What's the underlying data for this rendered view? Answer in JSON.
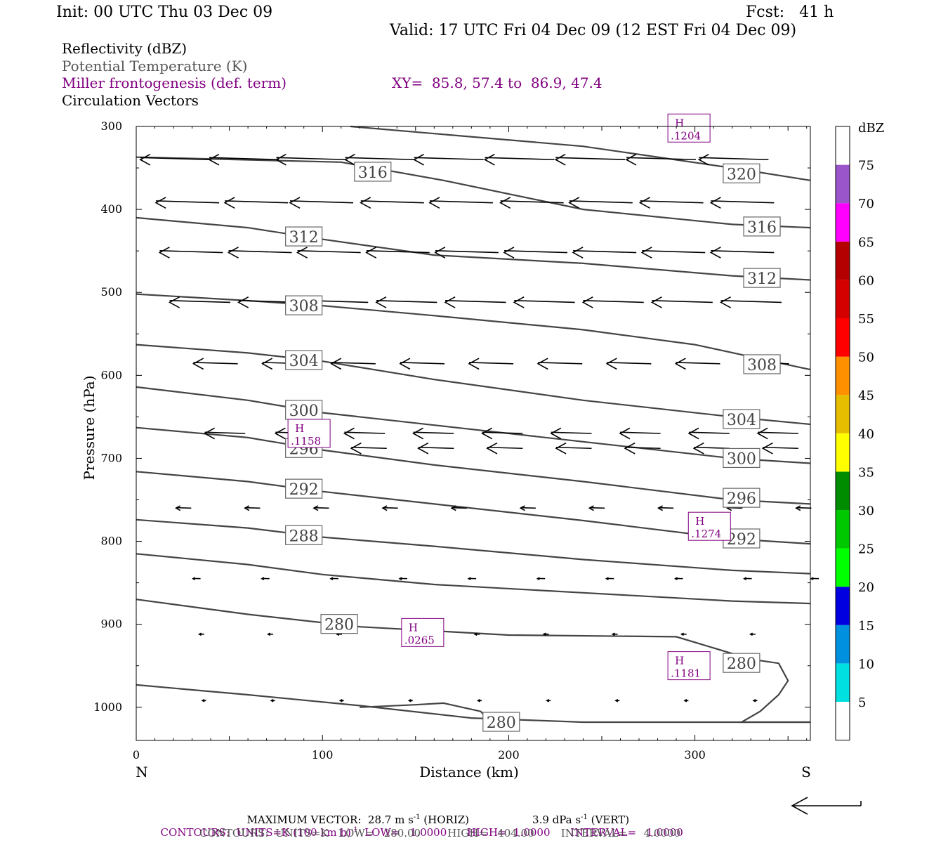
{
  "header": {
    "init": "Init: 00 UTC Thu 03 Dec 09",
    "fcst": "Fcst:   41 h",
    "valid": "Valid: 17 UTC Fri 04 Dec 09 (12 EST Fri 04 Dec 09)"
  },
  "fields": {
    "reflectivity": "Reflectivity (dBZ)",
    "theta": "Potential Temperature (K)",
    "miller": "Miller frontogenesis (def. term)",
    "xy": "XY=  85.8, 57.4 to  86.9, 47.4",
    "vectors": "Circulation Vectors"
  },
  "colors": {
    "theta": "#444444",
    "miller": "#800080",
    "vector": "#000000"
  },
  "chart_data": {
    "type": "line",
    "xlabel": "Distance (km)",
    "ylabel": "Pressure (hPa)",
    "xlim": [
      0,
      362
    ],
    "ylim": [
      1040,
      300
    ],
    "x_ticks": [
      0,
      100,
      200,
      300
    ],
    "y_ticks": [
      300,
      400,
      500,
      600,
      700,
      800,
      900,
      1000
    ],
    "x_end_left": "N",
    "x_end_right": "S",
    "theta_contours": [
      {
        "level": 320,
        "label": "320",
        "points": [
          [
            115,
            300
          ],
          [
            240,
            324
          ],
          [
            320,
            350
          ],
          [
            362,
            365
          ]
        ],
        "label_at": [
          325,
          357
        ]
      },
      {
        "level": 316,
        "label": "316",
        "points": [
          [
            0,
            337
          ],
          [
            110,
            343
          ],
          [
            165,
            365
          ],
          [
            240,
            400
          ],
          [
            320,
            418
          ],
          [
            362,
            422
          ]
        ],
        "label_at": [
          127,
          355
        ]
      },
      {
        "level": 316,
        "label": "316",
        "points": [
          [
            362,
            418
          ]
        ],
        "label_at": [
          336,
          421
        ]
      },
      {
        "level": 312,
        "label": "312",
        "points": [
          [
            0,
            410
          ],
          [
            60,
            422
          ],
          [
            100,
            436
          ],
          [
            160,
            455
          ],
          [
            240,
            465
          ],
          [
            320,
            480
          ],
          [
            362,
            485
          ]
        ],
        "label_at": [
          90,
          433
        ]
      },
      {
        "level": 312,
        "label": "312",
        "points": [
          [
            362,
            480
          ]
        ],
        "label_at": [
          336,
          483
        ]
      },
      {
        "level": 308,
        "label": "308",
        "points": [
          [
            0,
            502
          ],
          [
            60,
            510
          ],
          [
            100,
            516
          ],
          [
            160,
            528
          ],
          [
            240,
            545
          ],
          [
            300,
            563
          ],
          [
            362,
            593
          ]
        ],
        "label_at": [
          90,
          516
        ]
      },
      {
        "level": 308,
        "label": "308",
        "points": [
          [
            362,
            590
          ]
        ],
        "label_at": [
          336,
          587
        ]
      },
      {
        "level": 304,
        "label": "304",
        "points": [
          [
            0,
            563
          ],
          [
            60,
            573
          ],
          [
            100,
            583
          ],
          [
            160,
            605
          ],
          [
            240,
            630
          ],
          [
            320,
            650
          ],
          [
            362,
            659
          ]
        ],
        "label_at": [
          90,
          582
        ]
      },
      {
        "level": 304,
        "label": "304",
        "points": [
          [
            362,
            656
          ]
        ],
        "label_at": [
          325,
          653
        ]
      },
      {
        "level": 300,
        "label": "300",
        "points": [
          [
            0,
            614
          ],
          [
            60,
            630
          ],
          [
            100,
            645
          ],
          [
            160,
            660
          ],
          [
            240,
            680
          ],
          [
            320,
            700
          ],
          [
            362,
            706
          ]
        ],
        "label_at": [
          90,
          642
        ]
      },
      {
        "level": 300,
        "label": "300",
        "points": [
          [
            362,
            704
          ]
        ],
        "label_at": [
          325,
          700
        ]
      },
      {
        "level": 296,
        "label": "296",
        "points": [
          [
            0,
            663
          ],
          [
            60,
            675
          ],
          [
            100,
            690
          ],
          [
            160,
            708
          ],
          [
            240,
            728
          ],
          [
            320,
            750
          ],
          [
            362,
            755
          ]
        ],
        "label_at": [
          90,
          688
        ]
      },
      {
        "level": 296,
        "label": "296",
        "points": [
          [
            362,
            752
          ]
        ],
        "label_at": [
          325,
          748
        ]
      },
      {
        "level": 292,
        "label": "292",
        "points": [
          [
            0,
            716
          ],
          [
            60,
            728
          ],
          [
            100,
            740
          ],
          [
            160,
            755
          ],
          [
            240,
            775
          ],
          [
            320,
            797
          ],
          [
            362,
            803
          ]
        ],
        "label_at": [
          90,
          737
        ]
      },
      {
        "level": 292,
        "label": "292",
        "points": [
          [
            362,
            800
          ]
        ],
        "label_at": [
          325,
          797
        ]
      },
      {
        "level": 288,
        "label": "288",
        "points": [
          [
            0,
            774
          ],
          [
            60,
            784
          ],
          [
            100,
            795
          ],
          [
            160,
            806
          ],
          [
            240,
            822
          ],
          [
            320,
            835
          ],
          [
            362,
            839
          ]
        ],
        "label_at": [
          90,
          793
        ]
      },
      {
        "level": 284,
        "label": "",
        "points": [
          [
            0,
            815
          ],
          [
            60,
            828
          ],
          [
            100,
            840
          ],
          [
            160,
            852
          ],
          [
            240,
            862
          ],
          [
            320,
            872
          ],
          [
            362,
            875
          ]
        ],
        "label_at": null
      },
      {
        "level": 280,
        "label": "280",
        "points": [
          [
            0,
            870
          ],
          [
            60,
            888
          ],
          [
            120,
            903
          ],
          [
            200,
            913
          ],
          [
            290,
            915
          ],
          [
            330,
            942
          ],
          [
            345,
            947
          ],
          [
            350,
            968
          ],
          [
            345,
            985
          ],
          [
            335,
            1005
          ],
          [
            325,
            1018
          ],
          [
            362,
            1018
          ]
        ],
        "label_at": [
          109,
          900
        ]
      },
      {
        "level": 280,
        "label": "280",
        "points": [
          [
            330,
            947
          ]
        ],
        "label_at": [
          325,
          947
        ]
      },
      {
        "level": 280,
        "label": "280",
        "points": [
          [
            0,
            973
          ],
          [
            60,
            985
          ],
          [
            120,
            998
          ],
          [
            180,
            1013
          ],
          [
            240,
            1018
          ],
          [
            362,
            1018
          ]
        ],
        "label_at": [
          196,
          1018
        ]
      },
      {
        "level": 280,
        "label": "",
        "points": [
          [
            120,
            1000
          ],
          [
            150,
            997
          ],
          [
            165,
            995
          ],
          [
            185,
            1005
          ],
          [
            190,
            1018
          ]
        ],
        "label_at": null
      }
    ],
    "miller_maxima": [
      {
        "label": "H",
        "value": ".1204",
        "at": [
          287,
          307
        ]
      },
      {
        "label": "H",
        "value": ".1158",
        "at": [
          83,
          675
        ]
      },
      {
        "label": "H",
        "value": ".1274",
        "at": [
          298,
          787
        ]
      },
      {
        "label": "H",
        "value": ".0265",
        "at": [
          144,
          915
        ]
      },
      {
        "label": "H",
        "value": ".1181",
        "at": [
          287,
          955
        ]
      }
    ],
    "vectors_note": "circulation vectors, all northward (leftward) pointing",
    "vector_rows": [
      {
        "p": 340,
        "u": -5.5,
        "xs": [
          0,
          35,
          72,
          108,
          145,
          182,
          220,
          258,
          296,
          335
        ]
      },
      {
        "p": 392,
        "u": -5.0,
        "xs": [
          3,
          40,
          77,
          112,
          150,
          187,
          225,
          262,
          300,
          338
        ]
      },
      {
        "p": 452,
        "u": -5.0,
        "xs": [
          5,
          42,
          79,
          116,
          153,
          190,
          227,
          264,
          301,
          338
        ]
      },
      {
        "p": 512,
        "u": -4.8,
        "xs": [
          8,
          46,
          83,
          120,
          157,
          194,
          231,
          268,
          305,
          342
        ]
      },
      {
        "p": 586,
        "u": -3.5,
        "xs": [
          12,
          50,
          87,
          124,
          161,
          198,
          235,
          272,
          309,
          346
        ]
      },
      {
        "p": 670,
        "u": -3.2,
        "xs": [
          16,
          54,
          92,
          129,
          166,
          203,
          240,
          277,
          314,
          351
        ]
      },
      {
        "p": 688,
        "u": -2.8,
        "xs": [
          130,
          166,
          203,
          240,
          277,
          314,
          351
        ]
      },
      {
        "p": 760,
        "u": -1.2,
        "xs": [
          25,
          62,
          99,
          136,
          173,
          210,
          247,
          284,
          321,
          358
        ]
      },
      {
        "p": 845,
        "u": -0.6,
        "xs": [
          30,
          67,
          104,
          141,
          178,
          215,
          252,
          289,
          326,
          362
        ]
      },
      {
        "p": 912,
        "u": -0.4,
        "xs": [
          32,
          69,
          106,
          143,
          180,
          217,
          254,
          291,
          328
        ]
      },
      {
        "p": 992,
        "u": -0.3,
        "xs": [
          33,
          70,
          107,
          144,
          181,
          218,
          255,
          292,
          329
        ]
      }
    ],
    "colorbar": {
      "title": "dBZ",
      "levels": [
        "5",
        "10",
        "15",
        "20",
        "25",
        "30",
        "35",
        "40",
        "45",
        "50",
        "55",
        "60",
        "65",
        "70",
        "75"
      ],
      "colors": [
        "#ffffff",
        "#00e0e0",
        "#0090e0",
        "#0000e0",
        "#00ff00",
        "#00c800",
        "#008c00",
        "#ffff00",
        "#e6be00",
        "#ff9000",
        "#ff0000",
        "#d40000",
        "#b40000",
        "#ff00ff",
        "#9955c9",
        "#ffffff"
      ]
    }
  },
  "footer": {
    "max_vector_a": "MAXIMUM VECTOR:  28.7 m s",
    "max_vector_exp1": "-1",
    "max_vector_b": " (HORIZ)",
    "max_vector_c": "3.9 dPa s",
    "max_vector_exp2": "-1",
    "max_vector_d": " (VERT)",
    "contours_miller_a": "CONTOURS:  UNITS=K (100 km h)",
    "contours_miller_exp": "-1",
    "contours_miller_b": "  LOW=   1.0000      HIGH=  1.0000      INTERVAL=   1.0000",
    "contours_theta": "CONTOURS:  UNITS=K   LOW=   280.00        HIGH=   404.00        INTERVAL=     4.0000"
  }
}
